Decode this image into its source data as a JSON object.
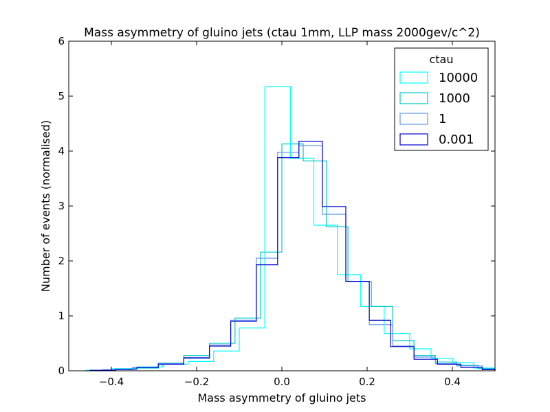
{
  "chart_data": {
    "type": "histogram",
    "title": "Mass asymmetry of gluino jets (ctau 1mm, LLP mass 2000gev/c^2)",
    "xlabel": "Mass asymmetry of gluino jets",
    "ylabel": "Number of events (normalised)",
    "xlim": [
      -0.5,
      0.5
    ],
    "ylim": [
      0,
      6
    ],
    "xticks": [
      -0.4,
      -0.2,
      0.0,
      0.2,
      0.4
    ],
    "xtick_labels": [
      "−0.4",
      "−0.2",
      "0.0",
      "0.2",
      "0.4"
    ],
    "yticks": [
      0,
      1,
      2,
      3,
      4,
      5,
      6
    ],
    "ytick_labels": [
      "0",
      "1",
      "2",
      "3",
      "4",
      "5",
      "6"
    ],
    "grid": false,
    "legend": {
      "title": "ctau",
      "position": "top-right"
    },
    "series": [
      {
        "name": "10000",
        "color": "#00ffff",
        "edges": [
          -0.46,
          -0.4,
          -0.34,
          -0.28,
          -0.22,
          -0.16,
          -0.1,
          -0.04,
          0.02,
          0.075,
          0.13,
          0.185,
          0.24,
          0.3,
          0.35,
          0.4,
          0.45,
          0.5
        ],
        "values": [
          0.01,
          0.04,
          0.07,
          0.12,
          0.17,
          0.36,
          0.78,
          5.17,
          3.87,
          2.65,
          1.75,
          1.17,
          0.68,
          0.4,
          0.23,
          0.15,
          0.05
        ]
      },
      {
        "name": "1000",
        "color": "#00c8c8",
        "edges": [
          -0.4,
          -0.35,
          -0.29,
          -0.23,
          -0.17,
          -0.11,
          -0.05,
          0.0,
          0.05,
          0.105,
          0.155,
          0.21,
          0.26,
          0.31,
          0.36,
          0.41,
          0.46,
          0.5
        ],
        "values": [
          0.02,
          0.05,
          0.14,
          0.28,
          0.5,
          0.96,
          2.16,
          4.13,
          3.82,
          2.62,
          1.62,
          1.17,
          0.55,
          0.28,
          0.16,
          0.1,
          0.04
        ]
      },
      {
        "name": "1",
        "color": "#6495ed",
        "edges": [
          -0.42,
          -0.35,
          -0.29,
          -0.23,
          -0.17,
          -0.12,
          -0.06,
          -0.01,
          0.04,
          0.095,
          0.15,
          0.205,
          0.26,
          0.31,
          0.36,
          0.41,
          0.47,
          0.5
        ],
        "values": [
          0.02,
          0.06,
          0.13,
          0.22,
          0.47,
          0.92,
          2.05,
          3.98,
          4.1,
          2.85,
          1.62,
          0.84,
          0.45,
          0.25,
          0.13,
          0.09,
          0.03
        ]
      },
      {
        "name": "0.001",
        "color": "#0000cd",
        "edges": [
          -0.45,
          -0.39,
          -0.34,
          -0.29,
          -0.23,
          -0.17,
          -0.12,
          -0.06,
          -0.01,
          0.04,
          0.095,
          0.15,
          0.205,
          0.255,
          0.31,
          0.365,
          0.42,
          0.47,
          0.5
        ],
        "values": [
          0.01,
          0.03,
          0.06,
          0.12,
          0.24,
          0.45,
          0.9,
          1.93,
          3.88,
          4.18,
          2.99,
          1.63,
          0.92,
          0.44,
          0.21,
          0.12,
          0.06,
          0.02
        ]
      }
    ]
  }
}
